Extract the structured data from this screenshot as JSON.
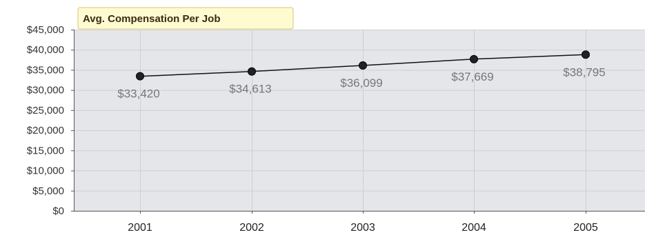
{
  "chart_data": {
    "type": "line",
    "title": "Avg. Compensation Per Job",
    "categories": [
      "2001",
      "2002",
      "2003",
      "2004",
      "2005"
    ],
    "series": [
      {
        "values": [
          33420,
          34613,
          36099,
          37669,
          38795
        ]
      }
    ],
    "data_labels": [
      "$33,420",
      "$34,613",
      "$36,099",
      "$37,669",
      "$38,795"
    ],
    "ylim": [
      0,
      45000
    ],
    "yticks": [
      0,
      5000,
      10000,
      15000,
      20000,
      25000,
      30000,
      35000,
      40000,
      45000
    ],
    "ytick_labels": [
      "$0",
      "$5,000",
      "$10,000",
      "$15,000",
      "$20,000",
      "$25,000",
      "$30,000",
      "$35,000",
      "$40,000",
      "$45,000"
    ],
    "grid": true,
    "colors": {
      "plot_background": "#e4e6ea",
      "grid": "#cfcfcf",
      "line": "#111111",
      "marker": "#222222",
      "title_background": "#fffbd0",
      "title_border": "#d8c27a",
      "data_label": "#777777"
    }
  }
}
